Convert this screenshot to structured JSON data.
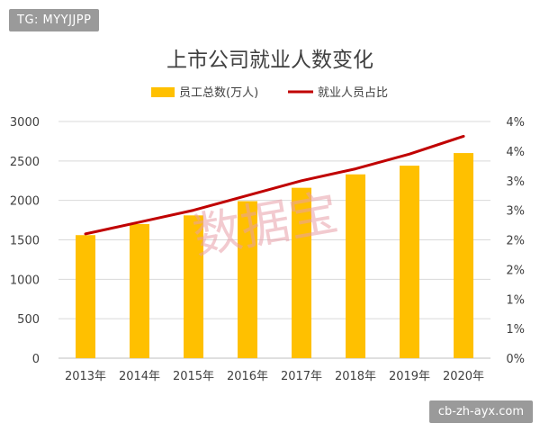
{
  "tag": "TG: MYYJJPP",
  "source": "cb-zh-ayx.com",
  "watermark": "数据宝",
  "chart_data": {
    "type": "bar",
    "title": "上市公司就业人数变化",
    "categories": [
      "2013年",
      "2014年",
      "2015年",
      "2016年",
      "2017年",
      "2018年",
      "2019年",
      "2020年"
    ],
    "series": [
      {
        "name": "员工总数(万人)",
        "type": "bar",
        "axis": "left",
        "color": "#FFC000",
        "values": [
          1560,
          1700,
          1810,
          1990,
          2160,
          2330,
          2440,
          2600
        ]
      },
      {
        "name": "就业人员占比",
        "type": "line",
        "axis": "right",
        "color": "#C00000",
        "values": [
          2.1,
          2.3,
          2.5,
          2.75,
          3.0,
          3.2,
          3.45,
          3.75
        ]
      }
    ],
    "y_left": {
      "ticks": [
        "0",
        "500",
        "1000",
        "1500",
        "2000",
        "2500",
        "3000"
      ],
      "ylim": [
        0,
        3000
      ]
    },
    "y_right": {
      "ticks": [
        "0%",
        "1%",
        "1%",
        "2%",
        "2%",
        "3%",
        "3%",
        "4%",
        "4%"
      ],
      "ylim": [
        0,
        4
      ]
    },
    "legend": "top-center",
    "grid": true
  }
}
